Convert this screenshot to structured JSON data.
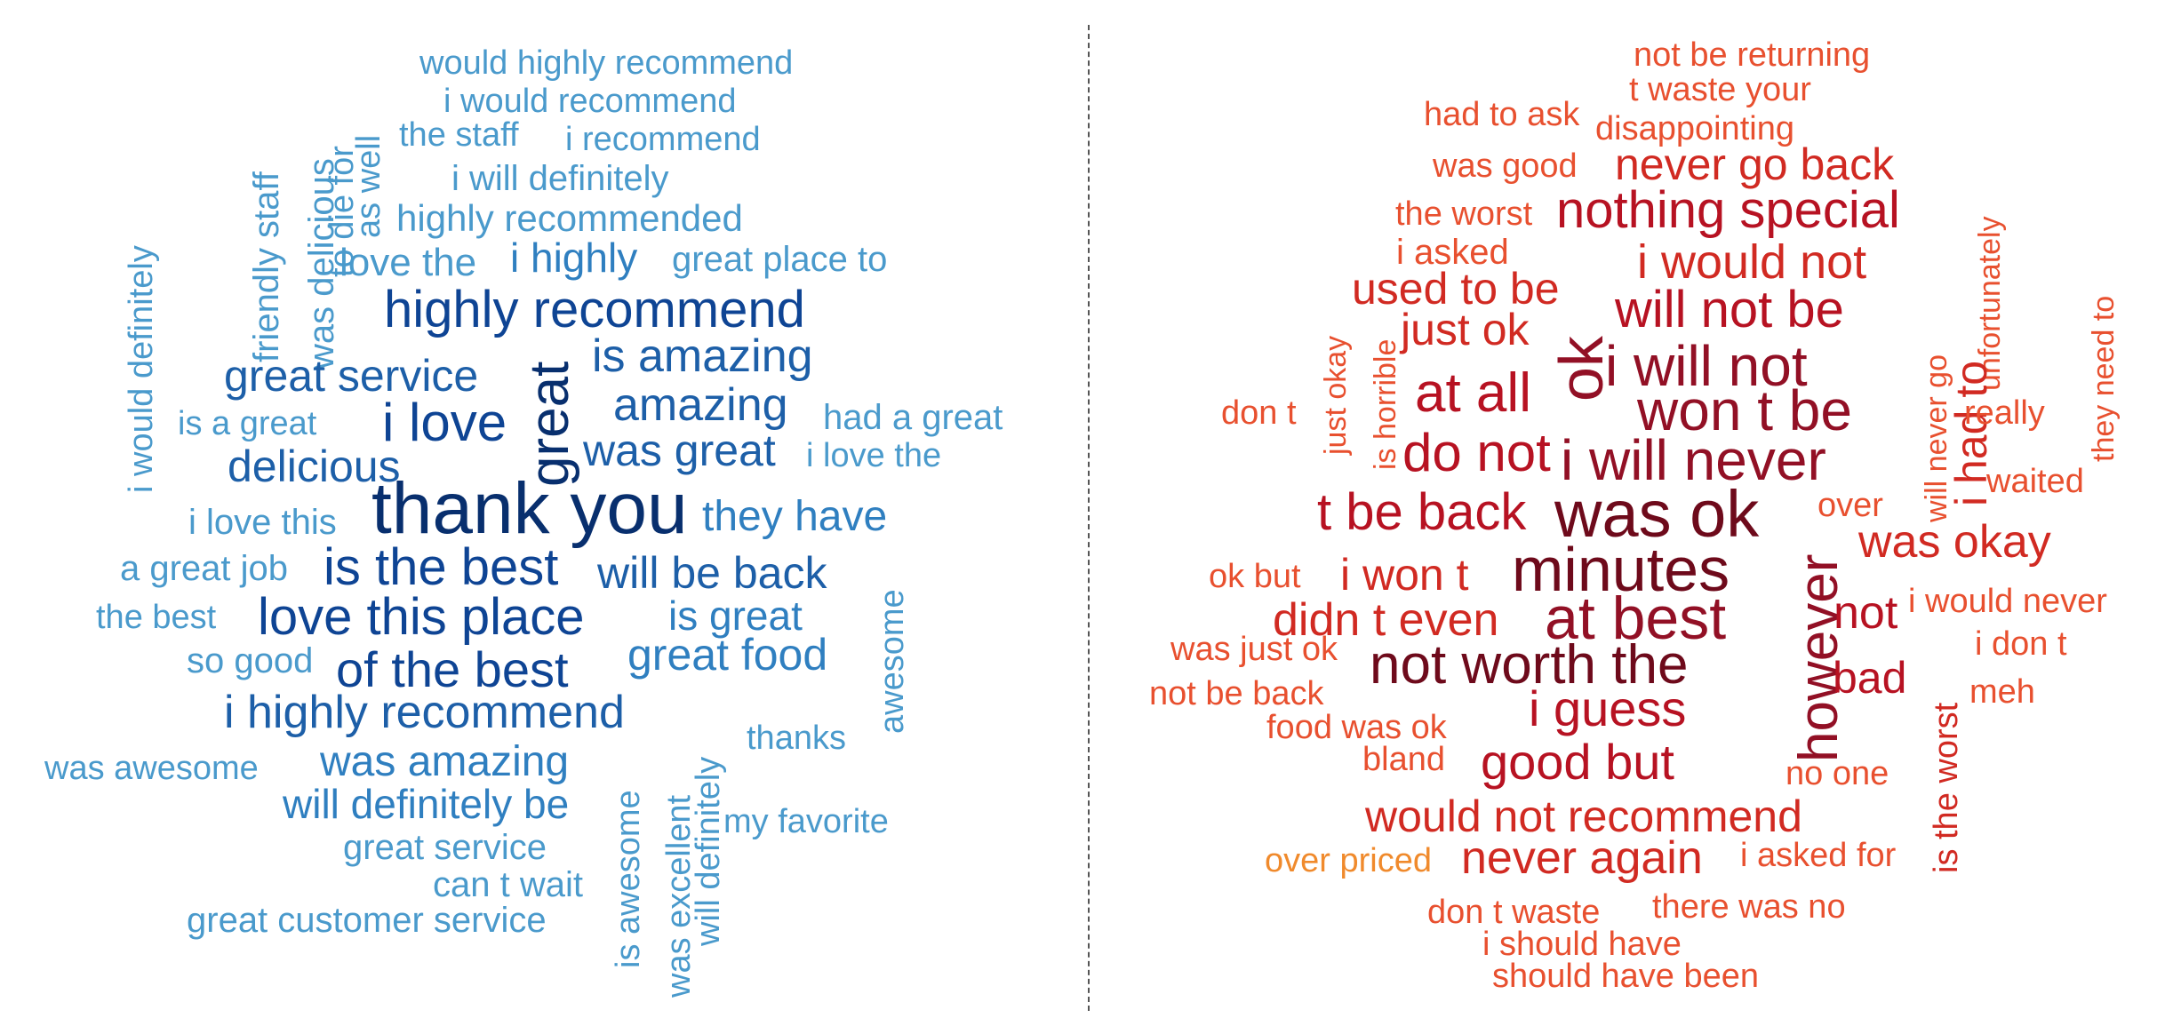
{
  "palettes": {
    "positive": [
      "#4a9acc",
      "#2f7fc0",
      "#1d5fa8",
      "#0e4494",
      "#082f6e"
    ],
    "negative": [
      "#e8502f",
      "#d12a22",
      "#b71222",
      "#921025",
      "#6e0a1b"
    ],
    "accent_orange": "#f08a2c"
  },
  "clouds": [
    {
      "side": "left",
      "sentiment": "positive",
      "words": [
        {
          "text": "would highly recommend",
          "weight": 1,
          "vertical": false
        },
        {
          "text": "i would recommend",
          "weight": 1,
          "vertical": false
        },
        {
          "text": "the staff",
          "weight": 1,
          "vertical": false
        },
        {
          "text": "i recommend",
          "weight": 1,
          "vertical": false
        },
        {
          "text": "i will definitely",
          "weight": 1,
          "vertical": false
        },
        {
          "text": "highly recommended",
          "weight": 1,
          "vertical": false
        },
        {
          "text": "love the",
          "weight": 1,
          "vertical": false
        },
        {
          "text": "i highly",
          "weight": 2,
          "vertical": false
        },
        {
          "text": "great place to",
          "weight": 1,
          "vertical": false
        },
        {
          "text": "friendly staff",
          "weight": 1,
          "vertical": true
        },
        {
          "text": "was delicious",
          "weight": 1,
          "vertical": true
        },
        {
          "text": "to die for",
          "weight": 1,
          "vertical": true
        },
        {
          "text": "as well",
          "weight": 1,
          "vertical": true
        },
        {
          "text": "i would definitely",
          "weight": 1,
          "vertical": true
        },
        {
          "text": "highly recommend",
          "weight": 4,
          "vertical": false
        },
        {
          "text": "great service",
          "weight": 3,
          "vertical": false
        },
        {
          "text": "great",
          "weight": 5,
          "vertical": true
        },
        {
          "text": "is amazing",
          "weight": 3,
          "vertical": false
        },
        {
          "text": "amazing",
          "weight": 3,
          "vertical": false
        },
        {
          "text": "is a great",
          "weight": 1,
          "vertical": false
        },
        {
          "text": "i love",
          "weight": 4,
          "vertical": false
        },
        {
          "text": "had a great",
          "weight": 1,
          "vertical": false
        },
        {
          "text": "delicious",
          "weight": 3,
          "vertical": false
        },
        {
          "text": "was great",
          "weight": 3,
          "vertical": false
        },
        {
          "text": "i love the",
          "weight": 1,
          "vertical": false
        },
        {
          "text": "i love this",
          "weight": 1,
          "vertical": false
        },
        {
          "text": "thank you",
          "weight": 5,
          "vertical": false
        },
        {
          "text": "they have",
          "weight": 2,
          "vertical": false
        },
        {
          "text": "a great job",
          "weight": 1,
          "vertical": false
        },
        {
          "text": "is the best",
          "weight": 4,
          "vertical": false
        },
        {
          "text": "will be back",
          "weight": 3,
          "vertical": false
        },
        {
          "text": "awesome",
          "weight": 1,
          "vertical": true
        },
        {
          "text": "the best",
          "weight": 1,
          "vertical": false
        },
        {
          "text": "love this place",
          "weight": 4,
          "vertical": false
        },
        {
          "text": "is great",
          "weight": 2,
          "vertical": false
        },
        {
          "text": "so good",
          "weight": 1,
          "vertical": false
        },
        {
          "text": "of the best",
          "weight": 4,
          "vertical": false
        },
        {
          "text": "great food",
          "weight": 2,
          "vertical": false
        },
        {
          "text": "i highly recommend",
          "weight": 3,
          "vertical": false
        },
        {
          "text": "thanks",
          "weight": 1,
          "vertical": false
        },
        {
          "text": "will definitely",
          "weight": 1,
          "vertical": true
        },
        {
          "text": "was awesome",
          "weight": 1,
          "vertical": false
        },
        {
          "text": "was amazing",
          "weight": 2,
          "vertical": false
        },
        {
          "text": "is awesome",
          "weight": 1,
          "vertical": true
        },
        {
          "text": "was excellent",
          "weight": 1,
          "vertical": true
        },
        {
          "text": "will definitely be",
          "weight": 2,
          "vertical": false
        },
        {
          "text": "my favorite",
          "weight": 1,
          "vertical": false
        },
        {
          "text": "great service",
          "weight": 1,
          "vertical": false
        },
        {
          "text": "can t wait",
          "weight": 1,
          "vertical": false
        },
        {
          "text": "great customer service",
          "weight": 1,
          "vertical": false
        }
      ]
    },
    {
      "side": "right",
      "sentiment": "negative",
      "words": [
        {
          "text": "not be returning",
          "weight": 1,
          "vertical": false
        },
        {
          "text": "t waste your",
          "weight": 1,
          "vertical": false
        },
        {
          "text": "had to ask",
          "weight": 1,
          "vertical": false
        },
        {
          "text": "disappointing",
          "weight": 1,
          "vertical": false
        },
        {
          "text": "was good",
          "weight": 1,
          "vertical": false
        },
        {
          "text": "never go back",
          "weight": 2,
          "vertical": false
        },
        {
          "text": "the worst",
          "weight": 1,
          "vertical": false
        },
        {
          "text": "nothing special",
          "weight": 3,
          "vertical": false
        },
        {
          "text": "unfortunately",
          "weight": 1,
          "vertical": true
        },
        {
          "text": "i asked",
          "weight": 1,
          "vertical": false
        },
        {
          "text": "i would not",
          "weight": 2,
          "vertical": false
        },
        {
          "text": "they need to",
          "weight": 1,
          "vertical": true
        },
        {
          "text": "used to be",
          "weight": 2,
          "vertical": false
        },
        {
          "text": "will not be",
          "weight": 3,
          "vertical": false
        },
        {
          "text": "just okay",
          "weight": 1,
          "vertical": true
        },
        {
          "text": "just ok",
          "weight": 2,
          "vertical": false
        },
        {
          "text": "is horrible",
          "weight": 1,
          "vertical": true
        },
        {
          "text": "ok",
          "weight": 4,
          "vertical": true
        },
        {
          "text": "will never go",
          "weight": 1,
          "vertical": true
        },
        {
          "text": "i had to",
          "weight": 2,
          "vertical": true
        },
        {
          "text": "i will not",
          "weight": 4,
          "vertical": false
        },
        {
          "text": "at all",
          "weight": 3,
          "vertical": false
        },
        {
          "text": "don t",
          "weight": 1,
          "vertical": false
        },
        {
          "text": "won t be",
          "weight": 4,
          "vertical": false
        },
        {
          "text": "really",
          "weight": 1,
          "vertical": false
        },
        {
          "text": "do not",
          "weight": 3,
          "vertical": false
        },
        {
          "text": "i will never",
          "weight": 4,
          "vertical": false
        },
        {
          "text": "waited",
          "weight": 1,
          "vertical": false
        },
        {
          "text": "t be back",
          "weight": 3,
          "vertical": false
        },
        {
          "text": "was ok",
          "weight": 5,
          "vertical": false
        },
        {
          "text": "over",
          "weight": 1,
          "vertical": false
        },
        {
          "text": "was okay",
          "weight": 2,
          "vertical": false
        },
        {
          "text": "however",
          "weight": 4,
          "vertical": true
        },
        {
          "text": "ok  but",
          "weight": 1,
          "vertical": false
        },
        {
          "text": "i won t",
          "weight": 2,
          "vertical": false
        },
        {
          "text": "minutes",
          "weight": 5,
          "vertical": false
        },
        {
          "text": "didn t even",
          "weight": 2,
          "vertical": false
        },
        {
          "text": "at best",
          "weight": 4,
          "vertical": false
        },
        {
          "text": "not",
          "weight": 3,
          "vertical": false
        },
        {
          "text": "i would never",
          "weight": 1,
          "vertical": false
        },
        {
          "text": "i don t",
          "weight": 1,
          "vertical": false
        },
        {
          "text": "was just ok",
          "weight": 1,
          "vertical": false
        },
        {
          "text": "not worth the",
          "weight": 5,
          "vertical": false
        },
        {
          "text": "is the worst",
          "weight": 2,
          "vertical": true
        },
        {
          "text": "bad",
          "weight": 3,
          "vertical": false
        },
        {
          "text": "meh",
          "weight": 1,
          "vertical": false
        },
        {
          "text": "not be back",
          "weight": 1,
          "vertical": false
        },
        {
          "text": "food was ok",
          "weight": 1,
          "vertical": false
        },
        {
          "text": "i guess",
          "weight": 3,
          "vertical": false
        },
        {
          "text": "bland",
          "weight": 1,
          "vertical": false
        },
        {
          "text": "good  but",
          "weight": 3,
          "vertical": false
        },
        {
          "text": "no one",
          "weight": 1,
          "vertical": false
        },
        {
          "text": "would not recommend",
          "weight": 2,
          "vertical": false
        },
        {
          "text": "over priced",
          "weight": 0,
          "vertical": false
        },
        {
          "text": "never again",
          "weight": 2,
          "vertical": false
        },
        {
          "text": "i asked for",
          "weight": 1,
          "vertical": false
        },
        {
          "text": "don t waste",
          "weight": 1,
          "vertical": false
        },
        {
          "text": "there was no",
          "weight": 1,
          "vertical": false
        },
        {
          "text": "i should have",
          "weight": 1,
          "vertical": false
        },
        {
          "text": "should have been",
          "weight": 1,
          "vertical": false
        }
      ]
    }
  ]
}
